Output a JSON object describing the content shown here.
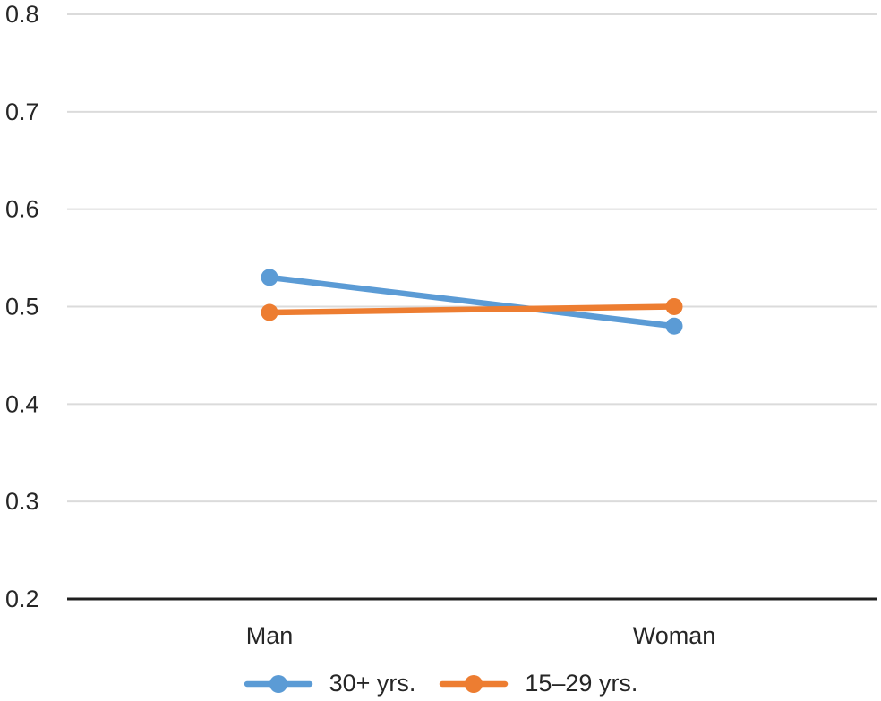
{
  "chart_data": {
    "type": "line",
    "title": "",
    "xlabel": "",
    "ylabel": "",
    "categories": [
      "Man",
      "Woman"
    ],
    "series": [
      {
        "name": "30+ yrs.",
        "color": "#5B9BD5",
        "values": [
          0.53,
          0.48
        ]
      },
      {
        "name": "15–29 yrs.",
        "color": "#ED7D31",
        "values": [
          0.494,
          0.5
        ]
      }
    ],
    "ylim": [
      0.2,
      0.8
    ],
    "ytick_step": 0.1,
    "ytick_labels": [
      "0.2",
      "0.3",
      "0.4",
      "0.5",
      "0.6",
      "0.7",
      "0.8"
    ],
    "grid": "horizontal-only",
    "legend_position": "bottom-center",
    "style": {
      "gridline_color": "#DBDBDB",
      "axis_color": "#1F1F1F",
      "text_color": "#262626",
      "line_width": 6.5,
      "marker_radius": 9.5,
      "tick_font_size": 27,
      "category_font_size": 27
    }
  }
}
